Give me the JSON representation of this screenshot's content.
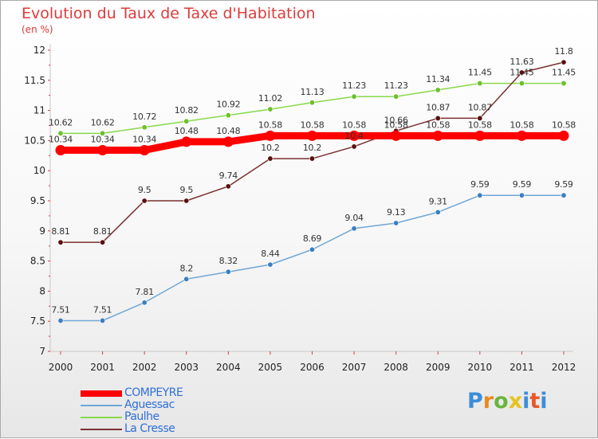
{
  "header": {
    "title": "Evolution du Taux de Taxe d'Habitation",
    "unit": "(en %)"
  },
  "logo": {
    "letters": [
      "P",
      "r",
      "o",
      "x",
      "i",
      "t",
      "i"
    ],
    "colors": [
      "#3b8ed8",
      "#e88a1e",
      "#6bb53c",
      "#e8c21e",
      "#3b8ed8",
      "#e8582b",
      "#3b8ed8"
    ]
  },
  "chart_data": {
    "type": "line",
    "title": "Evolution du Taux de Taxe d'Habitation",
    "ylabel": "(en %)",
    "xlabel": "",
    "x": [
      "2000",
      "2001",
      "2002",
      "2003",
      "2004",
      "2005",
      "2006",
      "2007",
      "2008",
      "2009",
      "2010",
      "2011",
      "2012"
    ],
    "ylim": [
      7,
      12
    ],
    "yticks": [
      "7",
      "7.5",
      "8",
      "8.5",
      "9",
      "9.5",
      "10",
      "10.5",
      "11",
      "11.5",
      "12"
    ],
    "legend_position": "bottom-left",
    "series": [
      {
        "name": "COMPEYRE",
        "color": "#ff0000",
        "marker": "#ff0000",
        "values": [
          10.34,
          10.34,
          10.34,
          10.48,
          10.48,
          10.58,
          10.58,
          10.58,
          10.58,
          10.58,
          10.58,
          10.58,
          10.58
        ],
        "labels": [
          "10.34",
          "10.34",
          "10.34",
          "10.48",
          "10.48",
          "10.58",
          "10.58",
          "10.58",
          "10.58",
          "10.58",
          "10.58",
          "10.58",
          "10.58"
        ]
      },
      {
        "name": "Aguessac",
        "color": "#6fa6d6",
        "marker": "#3b7fc0",
        "values": [
          7.51,
          7.51,
          7.81,
          8.2,
          8.32,
          8.44,
          8.69,
          9.04,
          9.13,
          9.31,
          9.59,
          9.59,
          9.59
        ],
        "labels": [
          "7.51",
          "7.51",
          "7.81",
          "8.2",
          "8.32",
          "8.44",
          "8.69",
          "9.04",
          "9.13",
          "9.31",
          "9.59",
          "9.59",
          "9.59"
        ]
      },
      {
        "name": "Paulhe",
        "color": "#88d94a",
        "marker": "#6cc02a",
        "values": [
          10.62,
          10.62,
          10.72,
          10.82,
          10.92,
          11.02,
          11.13,
          11.23,
          11.23,
          11.34,
          11.45,
          11.45,
          11.45
        ],
        "labels": [
          "10.62",
          "10.62",
          "10.72",
          "10.82",
          "10.92",
          "11.02",
          "11.13",
          "11.23",
          "11.23",
          "11.34",
          "11.45",
          "11.45",
          "11.45"
        ]
      },
      {
        "name": "La Cresse",
        "color": "#7a3030",
        "marker": "#5a1010",
        "values": [
          8.81,
          8.81,
          9.5,
          9.5,
          9.74,
          10.2,
          10.2,
          10.4,
          10.66,
          10.87,
          10.87,
          11.63,
          11.8
        ],
        "labels": [
          "8.81",
          "8.81",
          "9.5",
          "9.5",
          "9.74",
          "10.2",
          "10.2",
          "10.4",
          "10.66",
          "10.87",
          "10.87",
          "11.63",
          "11.8"
        ]
      }
    ]
  }
}
